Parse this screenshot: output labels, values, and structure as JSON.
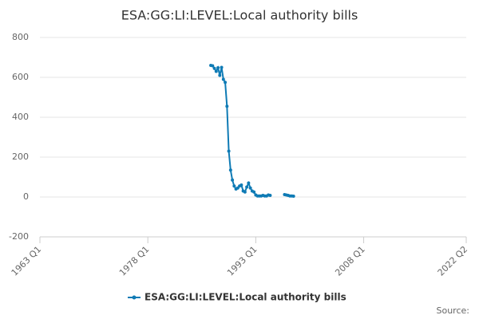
{
  "chart_data": {
    "type": "line",
    "title": "ESA:GG:LI:LEVEL:Local authority bills",
    "x": [
      1986.75,
      1987,
      1987.25,
      1987.5,
      1987.75,
      1988,
      1988.25,
      1988.5,
      1988.75,
      1989,
      1989.25,
      1989.5,
      1989.75,
      1990,
      1990.25,
      1990.5,
      1990.75,
      1991,
      1991.25,
      1991.5,
      1991.75,
      1992,
      1992.25,
      1992.5,
      1992.75,
      1993,
      1993.25,
      1993.5,
      1993.75,
      1994,
      1994.25,
      1994.5,
      1994.75,
      1995,
      1995.25,
      1995.5,
      1995.75,
      1996,
      1996.25,
      1996.5,
      1996.75,
      1997,
      1997.25,
      1997.5,
      1997.75,
      1998,
      1998.25
    ],
    "series": [
      {
        "name": "ESA:GG:LI:LEVEL:Local authority bills",
        "color": "#0f7bb5",
        "values": [
          660,
          658,
          645,
          630,
          648,
          610,
          650,
          590,
          575,
          455,
          230,
          135,
          85,
          55,
          40,
          45,
          55,
          60,
          30,
          25,
          50,
          70,
          45,
          30,
          25,
          10,
          5,
          5,
          5,
          8,
          5,
          5,
          10,
          8,
          null,
          null,
          null,
          null,
          null,
          null,
          null,
          12,
          10,
          8,
          5,
          5,
          4
        ]
      }
    ],
    "xlim": [
      1963,
      2022.25
    ],
    "xticks": [
      {
        "value": 1963,
        "label": "1963 Q1"
      },
      {
        "value": 1978,
        "label": "1978 Q1"
      },
      {
        "value": 1993,
        "label": "1993 Q1"
      },
      {
        "value": 2008,
        "label": "2008 Q1"
      },
      {
        "value": 2022.25,
        "label": "2022 Q2"
      }
    ],
    "ylim": [
      -200,
      800
    ],
    "yticks": [
      -200,
      0,
      200,
      400,
      600,
      800
    ],
    "grid": true,
    "source": "Source:"
  }
}
